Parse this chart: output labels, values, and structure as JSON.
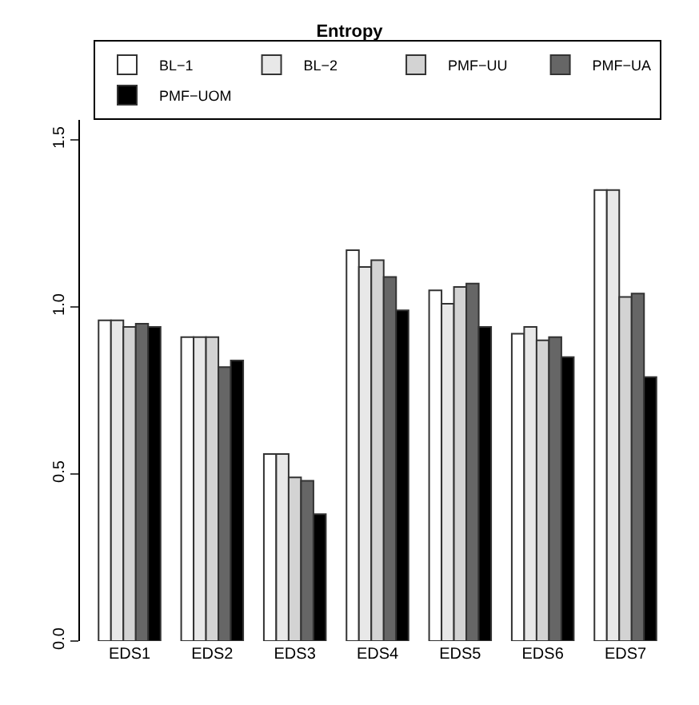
{
  "chart_data": {
    "type": "bar",
    "title": "Entropy",
    "categories": [
      "EDS1",
      "EDS2",
      "EDS3",
      "EDS4",
      "EDS5",
      "EDS6",
      "EDS7"
    ],
    "series": [
      {
        "name": "BL−1",
        "color": "#ffffff",
        "values": [
          0.96,
          0.91,
          0.56,
          1.17,
          1.05,
          0.92,
          1.35
        ]
      },
      {
        "name": "BL−2",
        "color": "#e8e8e8",
        "values": [
          0.96,
          0.91,
          0.56,
          1.12,
          1.01,
          0.94,
          1.35
        ]
      },
      {
        "name": "PMF−UU",
        "color": "#d3d3d3",
        "values": [
          0.94,
          0.91,
          0.49,
          1.14,
          1.06,
          0.9,
          1.03
        ]
      },
      {
        "name": "PMF−UA",
        "color": "#666666",
        "values": [
          0.95,
          0.82,
          0.48,
          1.09,
          1.07,
          0.91,
          1.04
        ]
      },
      {
        "name": "PMF−UOM",
        "color": "#000000",
        "values": [
          0.94,
          0.84,
          0.38,
          0.99,
          0.94,
          0.85,
          0.79
        ]
      }
    ],
    "ylim": [
      0,
      1.56
    ],
    "yticks": [
      {
        "value": 0,
        "label": "0.0"
      },
      {
        "value": 0.5,
        "label": "0.5"
      },
      {
        "value": 1,
        "label": "1.0"
      },
      {
        "value": 1.5,
        "label": "1.5"
      }
    ],
    "grid": false,
    "legend": "top"
  }
}
